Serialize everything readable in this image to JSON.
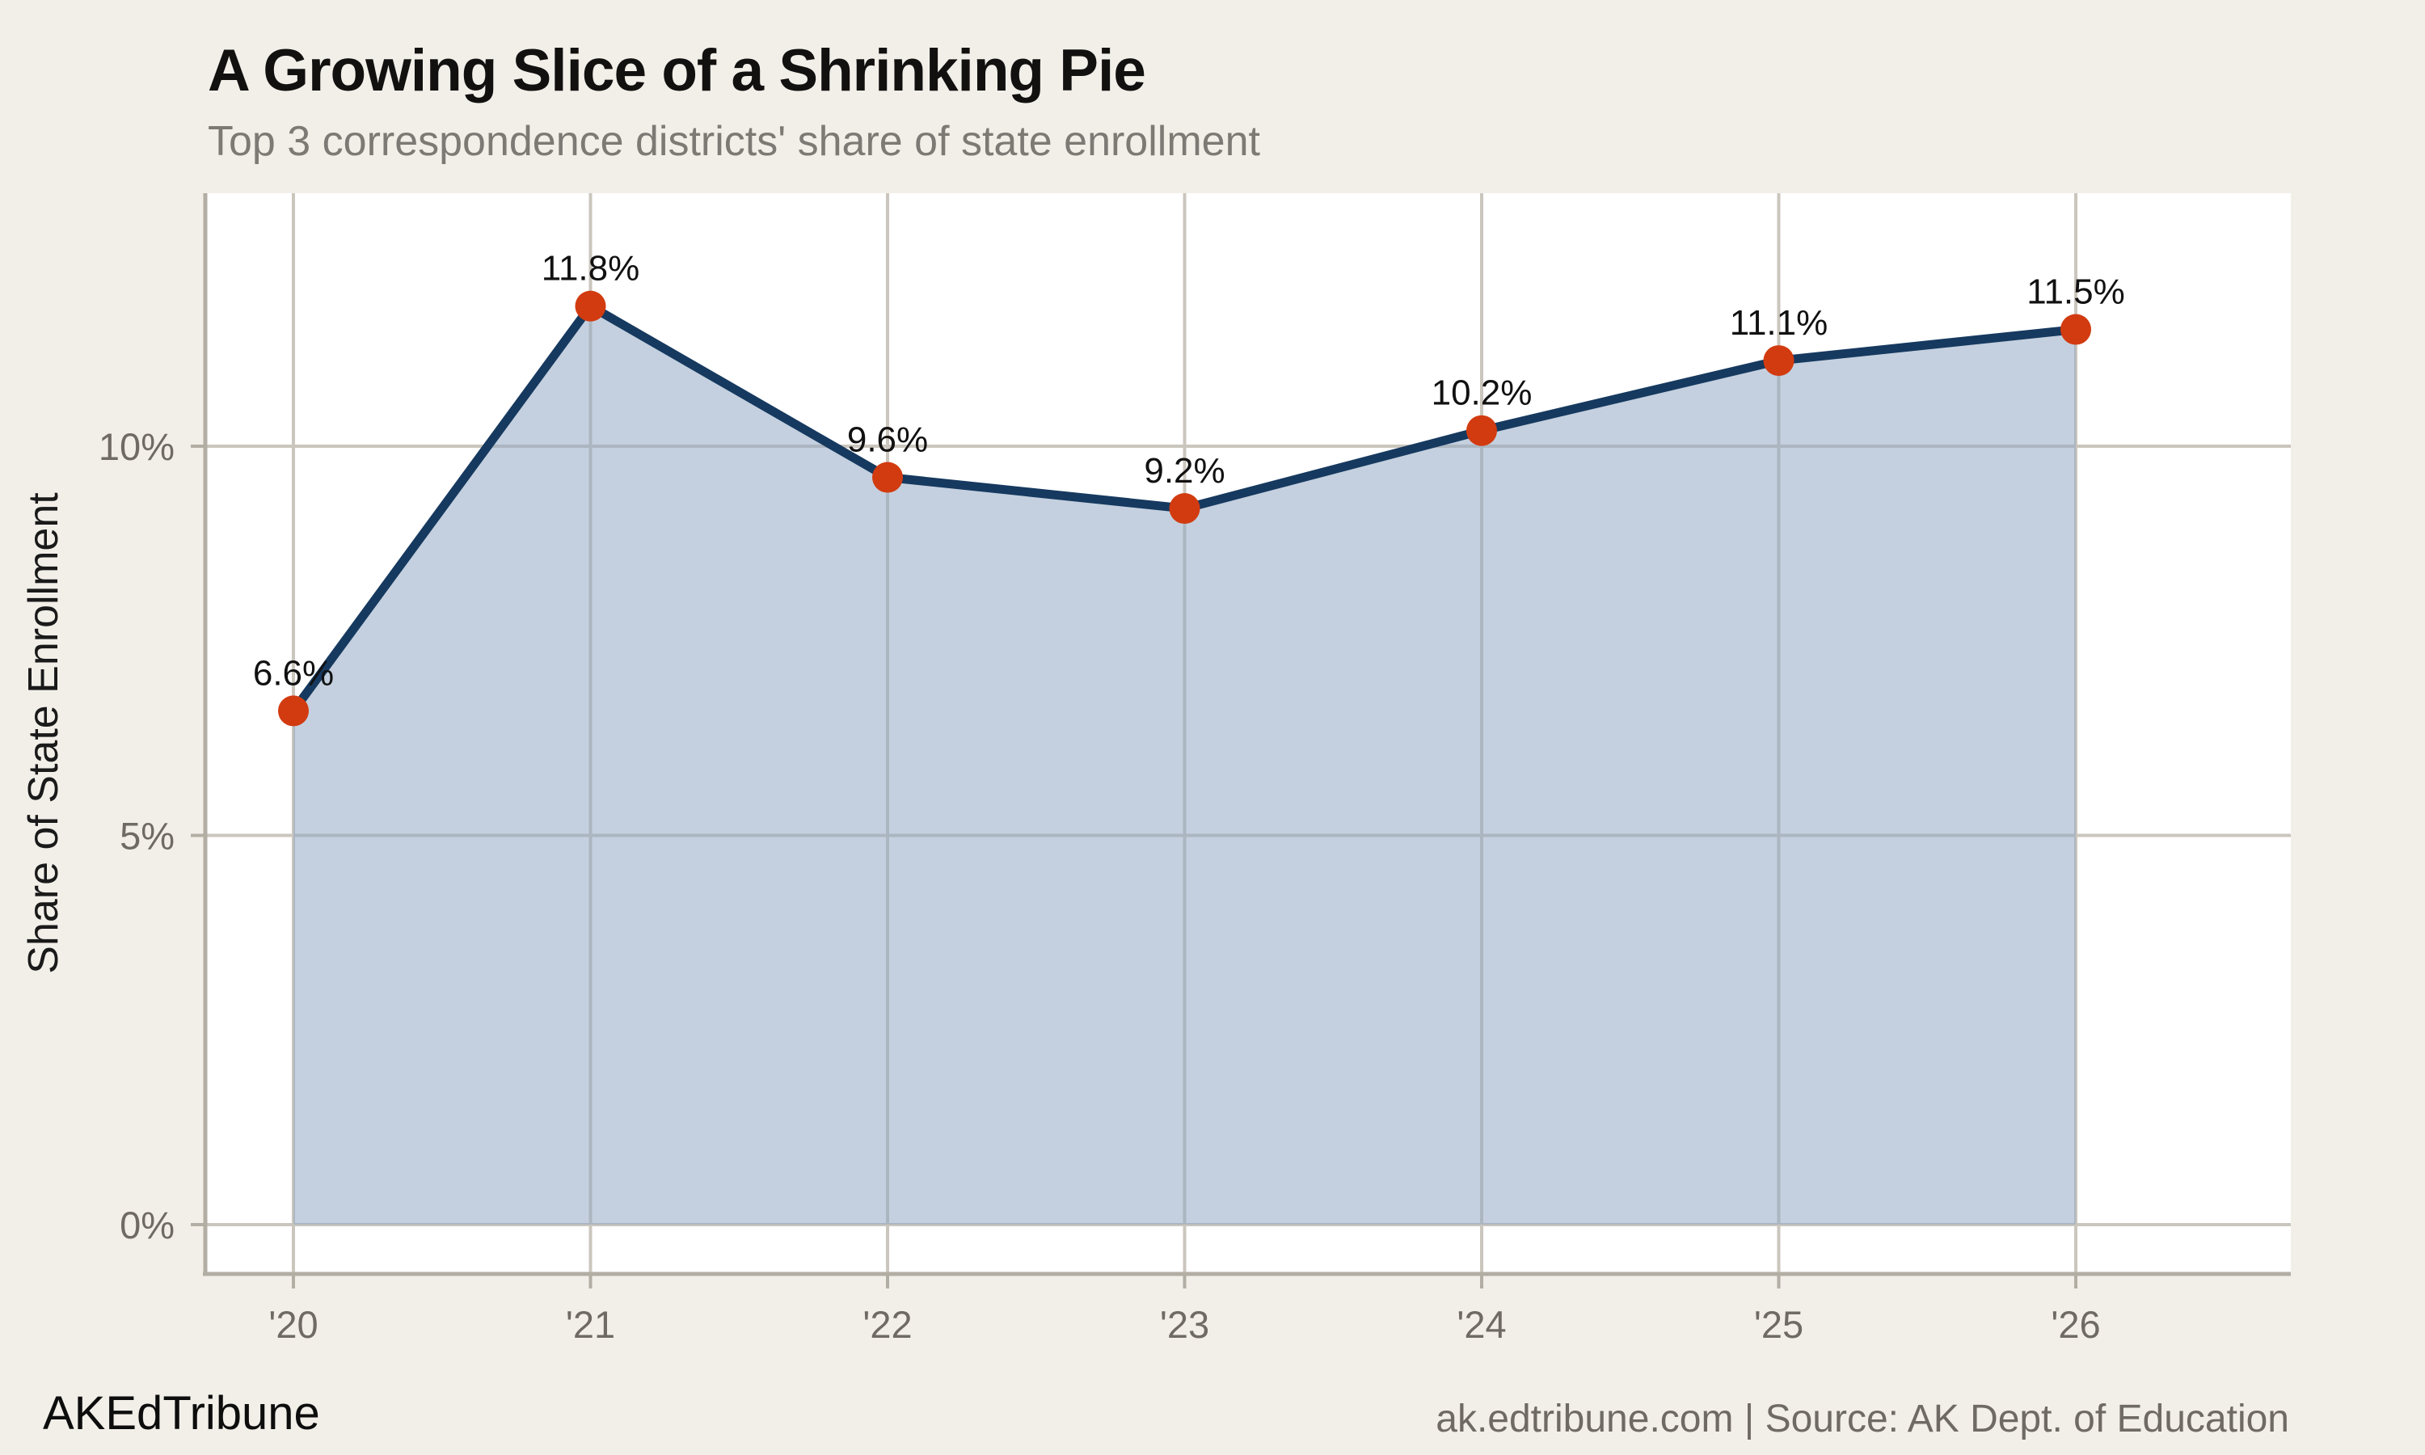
{
  "title": "A Growing Slice of a Shrinking Pie",
  "subtitle": "Top 3 correspondence districts' share of state enrollment",
  "footer": {
    "left": "AKEdTribune",
    "right": "ak.edtribune.com | Source: AK Dept. of Education"
  },
  "chart_data": {
    "type": "area",
    "title": "A Growing Slice of a Shrinking Pie",
    "subtitle": "Top 3 correspondence districts' share of state enrollment",
    "categories": [
      "'20",
      "'21",
      "'22",
      "'23",
      "'24",
      "'25",
      "'26"
    ],
    "values": [
      6.6,
      11.8,
      9.6,
      9.2,
      10.2,
      11.1,
      11.5
    ],
    "point_labels": [
      "6.6%",
      "11.8%",
      "9.6%",
      "9.2%",
      "10.2%",
      "11.1%",
      "11.5%"
    ],
    "xlabel": "",
    "ylabel": "Share of State Enrollment",
    "y_ticks": [
      {
        "value": 0,
        "label": "0%"
      },
      {
        "value": 5,
        "label": "5%"
      },
      {
        "value": 10,
        "label": "10%"
      }
    ],
    "ylim": [
      -0.65,
      13.25
    ],
    "grid": true,
    "legend": "none",
    "marker": "circle",
    "colors": {
      "background": "#f2efe9",
      "plot_background": "#ffffff",
      "line": "#16395f",
      "marker": "#d23b10",
      "area_fill": "rgba(148,170,196,0.55)",
      "gridline": "#cbc6bd",
      "spine": "#b3aea4",
      "tick_label": "#6f6b64",
      "data_label": "#111111",
      "title_color": "#121110",
      "subtitle_color": "#7d7974",
      "axis_title_color": "#1a1a1a",
      "footer_left_color": "#0d0d0d",
      "footer_right_color": "#6f6b64"
    }
  }
}
